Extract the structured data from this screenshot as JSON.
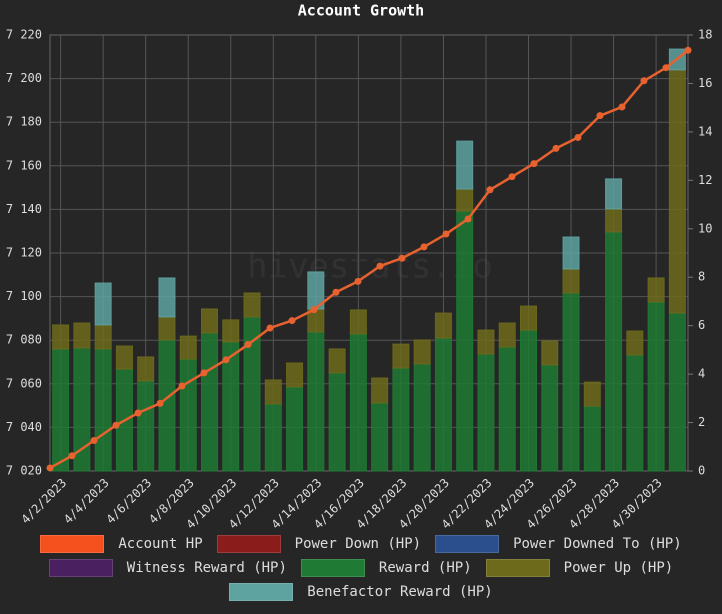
{
  "chart_data": {
    "type": "bar",
    "title": "Account Growth",
    "watermark": "hivestats.io",
    "categories": [
      "4/2/2023",
      null,
      "4/4/2023",
      null,
      "4/6/2023",
      null,
      "4/8/2023",
      null,
      "4/10/2023",
      null,
      "4/12/2023",
      null,
      "4/14/2023",
      null,
      "4/16/2023",
      null,
      "4/18/2023",
      null,
      "4/20/2023",
      null,
      "4/22/2023",
      null,
      "4/24/2023",
      null,
      "4/26/2023",
      null,
      "4/28/2023",
      null,
      "4/30/2023",
      null
    ],
    "ylim": [
      7020,
      7220
    ],
    "yticks": [
      {
        "value": 7020,
        "label": "7 020"
      },
      {
        "value": 7040,
        "label": "7 040"
      },
      {
        "value": 7060,
        "label": "7 060"
      },
      {
        "value": 7080,
        "label": "7 080"
      },
      {
        "value": 7100,
        "label": "7 100"
      },
      {
        "value": 7120,
        "label": "7 120"
      },
      {
        "value": 7140,
        "label": "7 140"
      },
      {
        "value": 7160,
        "label": "7 160"
      },
      {
        "value": 7180,
        "label": "7 180"
      },
      {
        "value": 7200,
        "label": "7 200"
      },
      {
        "value": 7220,
        "label": "7 220"
      }
    ],
    "y2lim": [
      0,
      18
    ],
    "y2ticks": [
      0,
      2,
      4,
      6,
      8,
      10,
      12,
      14,
      16,
      18
    ],
    "grid": true,
    "series": [
      {
        "name": "Account HP",
        "type": "line",
        "color": "#e8622f",
        "legend_color": "#f4511e",
        "values": [
          7021.4,
          7027,
          7034,
          7041,
          7046.6,
          7051,
          7059,
          7065,
          7071,
          7078,
          7085.6,
          7089,
          7094,
          7102,
          7107,
          7114,
          7117.6,
          7122.8,
          7128.7,
          7135.6,
          7149,
          7155,
          7161,
          7168,
          7173,
          7183,
          7187,
          7199,
          7205,
          7213
        ]
      },
      {
        "name": "Power Down (HP)",
        "axis": "y2",
        "color": "#8b1c1c",
        "values": [
          0,
          0,
          0,
          0,
          0,
          0,
          0,
          0,
          0,
          0,
          0,
          0,
          0,
          0,
          0,
          0,
          0,
          0,
          0,
          0,
          0,
          0,
          0,
          0,
          0,
          0,
          0,
          0,
          0,
          0
        ]
      },
      {
        "name": "Power Downed To (HP)",
        "axis": "y2",
        "color": "#2b4f8c",
        "values": [
          0,
          0,
          0,
          0,
          0,
          0,
          0,
          0,
          0,
          0,
          0,
          0,
          0,
          0,
          0,
          0,
          0,
          0,
          0,
          0,
          0,
          0,
          0,
          0,
          0,
          0,
          0,
          0,
          0,
          0
        ]
      },
      {
        "name": "Witness Reward (HP)",
        "axis": "y2",
        "color": "#4a2060",
        "values": [
          0,
          0,
          0,
          0,
          0,
          0,
          0,
          0,
          0,
          0,
          0,
          0,
          0,
          0,
          0,
          0,
          0,
          0,
          0,
          0,
          0,
          0,
          0,
          0,
          0,
          0,
          0,
          0,
          0,
          0
        ]
      },
      {
        "name": "Reward (HP)",
        "axis": "y2",
        "color": "#1f7a34",
        "values": [
          5.04,
          5.08,
          5.04,
          4.21,
          3.72,
          5.41,
          4.62,
          5.7,
          5.33,
          6.36,
          2.77,
          3.47,
          5.74,
          4.05,
          5.66,
          2.81,
          4.25,
          4.42,
          5.49,
          10.73,
          4.83,
          5.12,
          5.82,
          4.38,
          7.35,
          2.68,
          9.87,
          4.79,
          6.98,
          6.52
        ]
      },
      {
        "name": "Power Up (HP)",
        "axis": "y2",
        "color": "#6e6a1c",
        "values": [
          0.99,
          1.03,
          0.99,
          0.95,
          0.99,
          0.95,
          0.95,
          0.99,
          0.91,
          0.99,
          0.99,
          0.99,
          0.95,
          0.99,
          0.99,
          1.03,
          0.99,
          0.99,
          1.03,
          0.91,
          0.99,
          0.99,
          0.99,
          0.99,
          0.99,
          0.99,
          0.95,
          0.99,
          0.99,
          10.04
        ]
      },
      {
        "name": "Benefactor Reward (HP)",
        "axis": "y2",
        "color": "#5fa3a1",
        "values": [
          0,
          0,
          1.73,
          0,
          0,
          1.61,
          0,
          0,
          0,
          0,
          0,
          0,
          1.53,
          0,
          0,
          0,
          0,
          0,
          0,
          1.98,
          0,
          0,
          0,
          0,
          1.32,
          0,
          1.24,
          0,
          0,
          0.86
        ]
      }
    ]
  }
}
